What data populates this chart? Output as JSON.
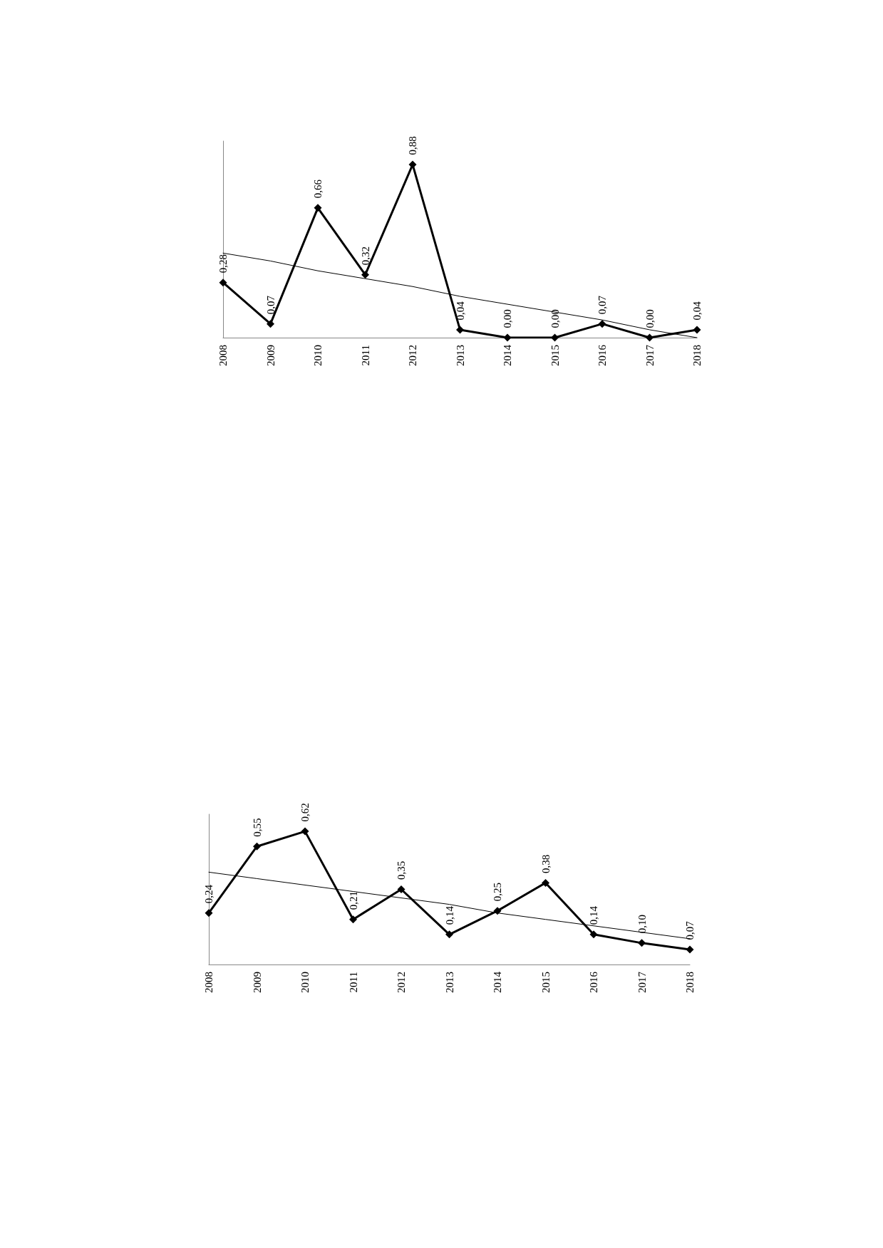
{
  "chart_data": [
    {
      "type": "line",
      "categories": [
        "2008",
        "2009",
        "2010",
        "2011",
        "2012",
        "2013",
        "2014",
        "2015",
        "2016",
        "2017",
        "2018"
      ],
      "ylim": [
        0,
        1
      ],
      "tick_labels": "x",
      "marker": "diamond",
      "line_style": "solid",
      "grid": false,
      "series": [
        {
          "color": "#000000",
          "values": [
            0.28,
            0.07,
            0.66,
            0.32,
            0.88,
            0.04,
            0.0,
            0.0,
            0.07,
            0.0,
            0.04
          ],
          "value_labels": [
            "0,28",
            "0,07",
            "0,66",
            "0,32",
            "0,88",
            "0,04",
            "0,00",
            "0,00",
            "0,07",
            "0,00",
            "0,04"
          ]
        },
        {
          "type": "line",
          "color": "#000000",
          "marker": "none",
          "values": [
            0.43,
            0.39,
            0.34,
            0.3,
            0.26,
            0.21,
            0.17,
            0.13,
            0.09,
            0.04,
            0.0
          ]
        }
      ]
    },
    {
      "type": "line",
      "categories": [
        "2008",
        "2009",
        "2010",
        "2011",
        "2012",
        "2013",
        "2014",
        "2015",
        "2016",
        "2017",
        "2018"
      ],
      "ylim": [
        0,
        0.7
      ],
      "tick_labels": "x",
      "marker": "diamond",
      "line_style": "solid",
      "grid": false,
      "series": [
        {
          "color": "#000000",
          "values": [
            0.24,
            0.55,
            0.62,
            0.21,
            0.35,
            0.14,
            0.25,
            0.38,
            0.14,
            0.1,
            0.07
          ],
          "value_labels": [
            "0,24",
            "0,55",
            "0,62",
            "0,21",
            "0,35",
            "0,14",
            "0,25",
            "0,38",
            "0,14",
            "0,10",
            "0,07"
          ]
        },
        {
          "type": "line",
          "color": "#000000",
          "marker": "none",
          "values": [
            0.43,
            0.4,
            0.37,
            0.34,
            0.31,
            0.28,
            0.24,
            0.21,
            0.18,
            0.15,
            0.12
          ]
        }
      ]
    }
  ]
}
